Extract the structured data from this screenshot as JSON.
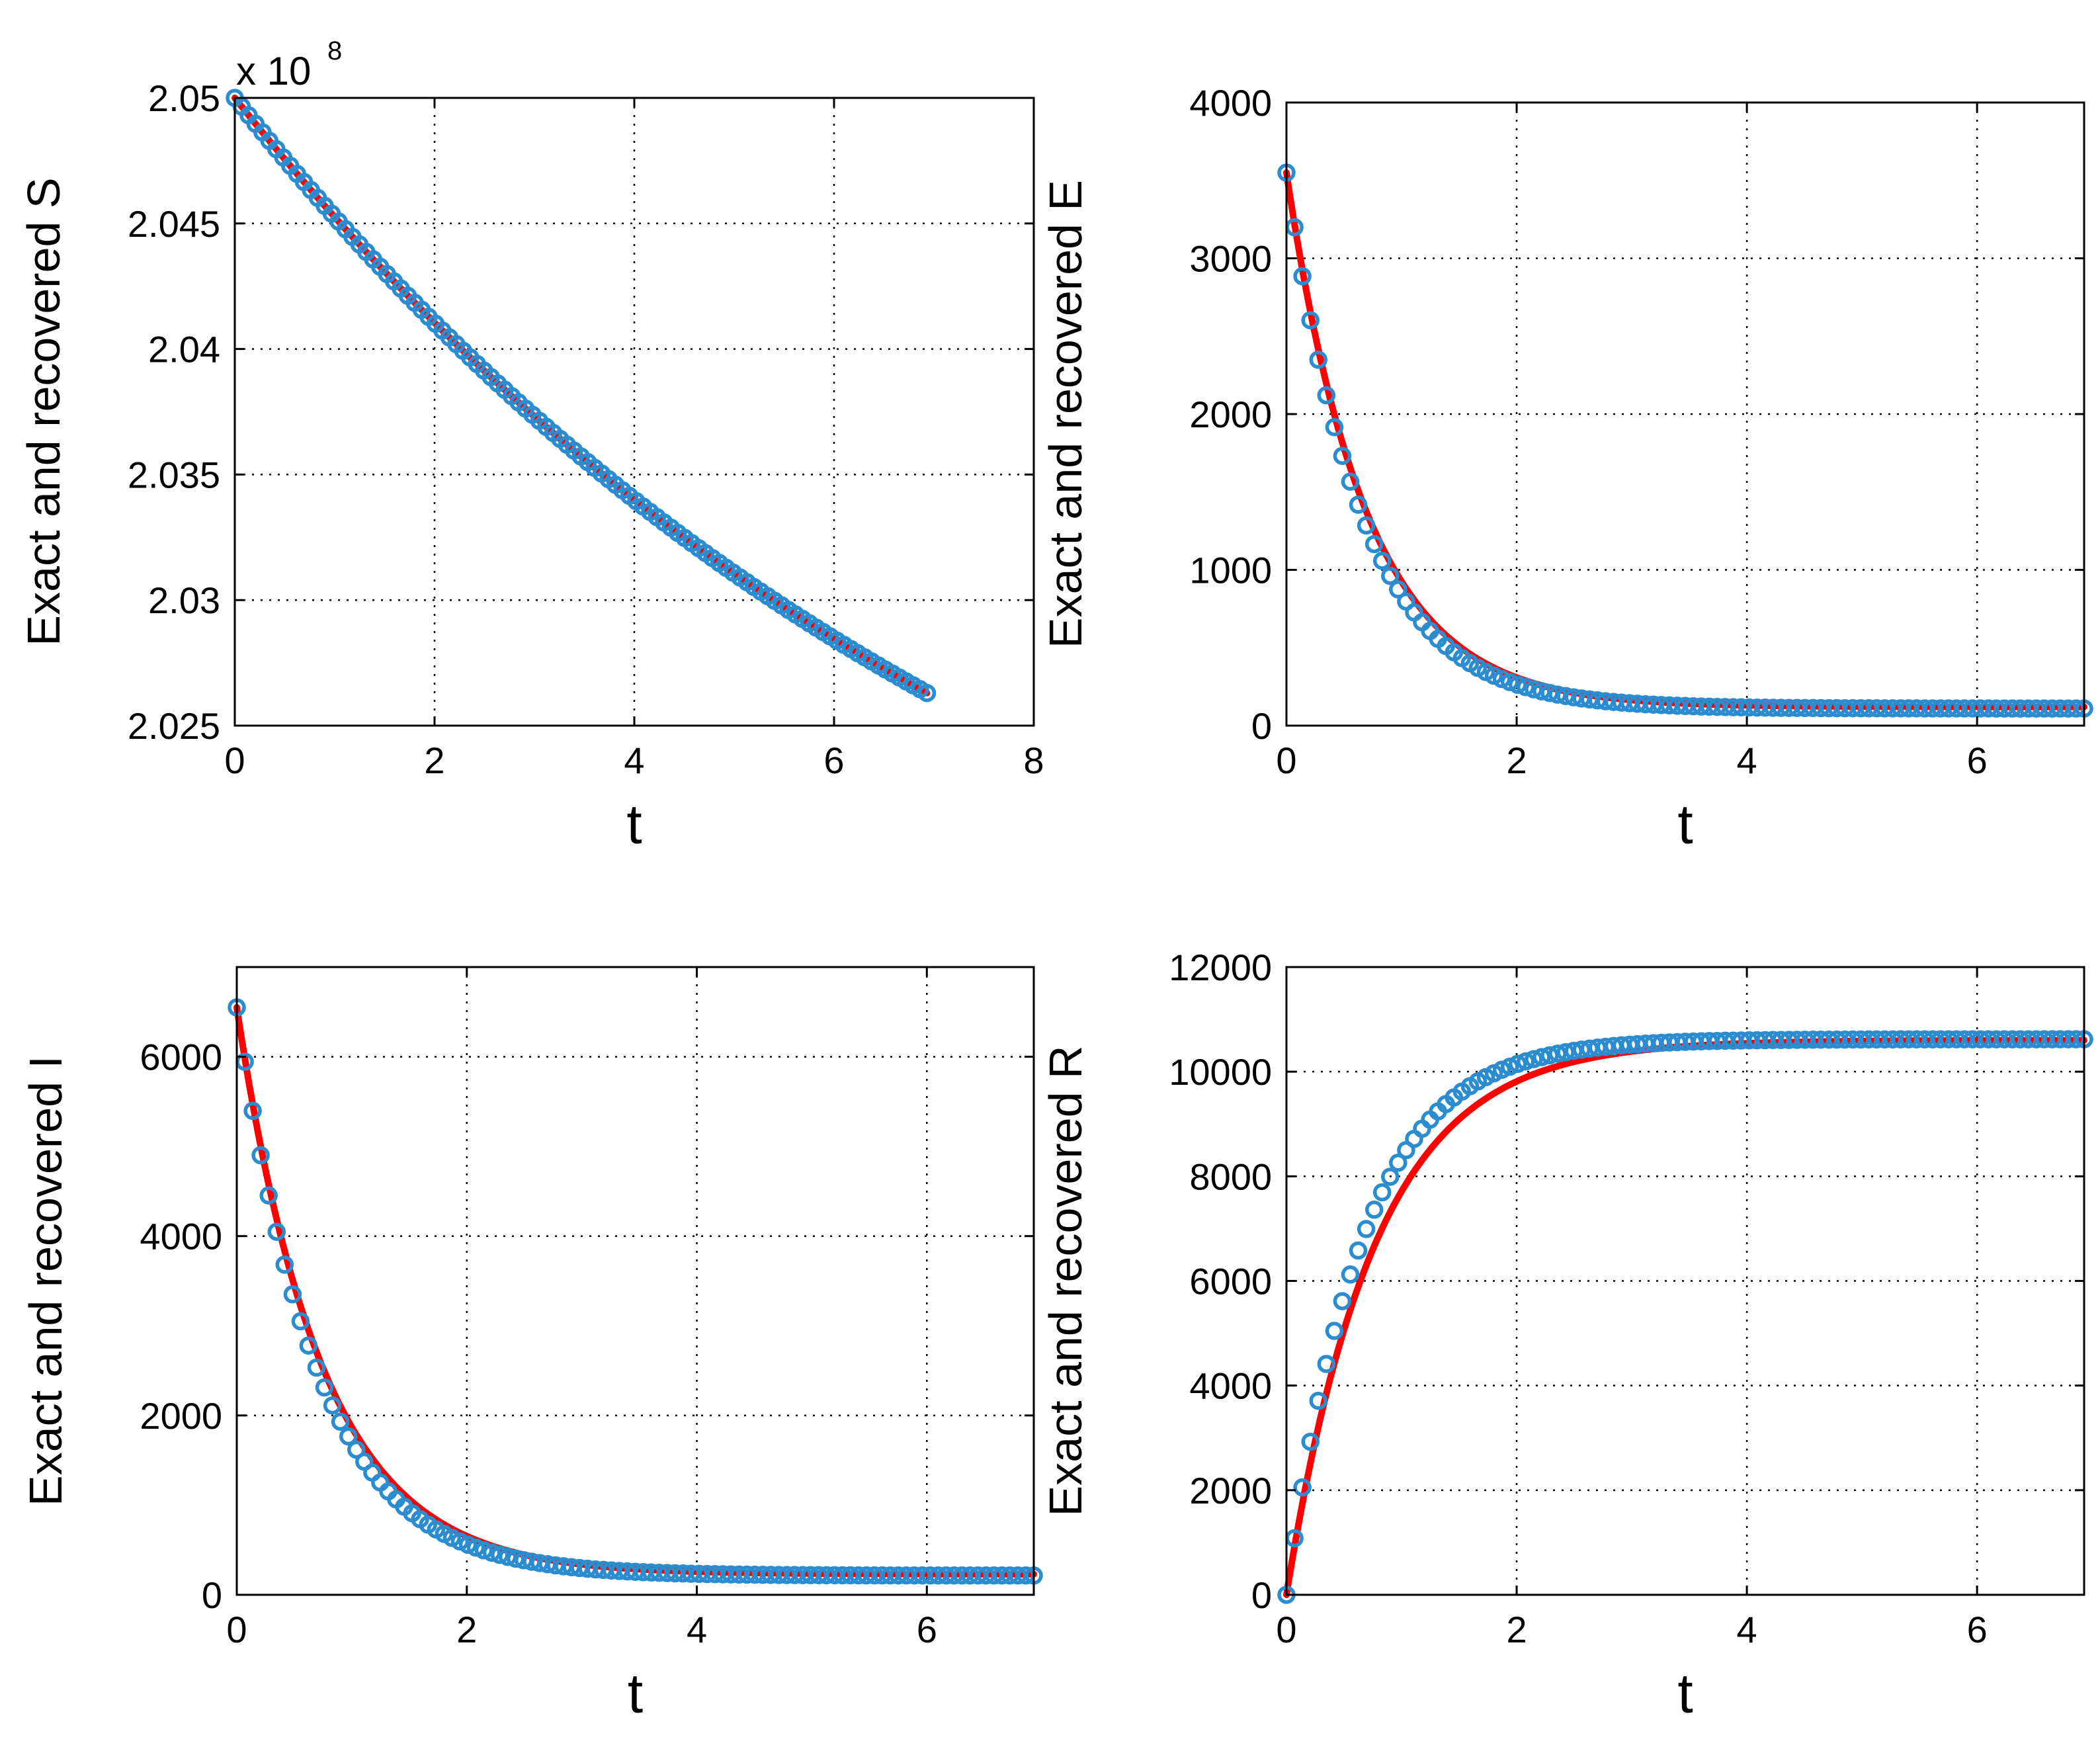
{
  "colors": {
    "exact": "#ff0000",
    "recovered": "#2b8ccf",
    "grid": "#000000",
    "axes": "#000000"
  },
  "chart_data": [
    {
      "id": "S",
      "type": "line",
      "title": "",
      "xlabel": "t",
      "ylabel": "Exact and recovered S",
      "xlim": [
        0,
        8
      ],
      "ylim": [
        2.025,
        2.05
      ],
      "xticks": [
        0,
        2,
        4,
        6,
        8
      ],
      "yticks": [
        2.025,
        2.03,
        2.035,
        2.04,
        2.045,
        2.05
      ],
      "xtick_labels": [
        "0",
        "2",
        "4",
        "6",
        "8"
      ],
      "ytick_labels": [
        "2.025",
        "2.03",
        "2.035",
        "2.04",
        "2.045",
        "2.05"
      ],
      "y_exponent": "x 10",
      "y_exponent_power": "8",
      "grid": true,
      "t_end": 6.93,
      "series": [
        {
          "name": "exact",
          "style": "line",
          "y0": 2.05,
          "y_end": 2.0263,
          "decay_rate": 0.12,
          "k": 0.12
        },
        {
          "name": "recovered",
          "style": "circle-markers",
          "y0": 2.05,
          "y_end": 2.0263,
          "decay_rate": 0.12,
          "k": 0.12
        }
      ]
    },
    {
      "id": "E",
      "type": "line",
      "title": "",
      "xlabel": "t",
      "ylabel": "Exact and recovered E",
      "xlim": [
        0,
        6.93
      ],
      "ylim": [
        0,
        4000
      ],
      "xticks": [
        0,
        2,
        4,
        6
      ],
      "yticks": [
        0,
        1000,
        2000,
        3000,
        4000
      ],
      "xtick_labels": [
        "0",
        "2",
        "4",
        "6"
      ],
      "ytick_labels": [
        "0",
        "1000",
        "2000",
        "3000",
        "4000"
      ],
      "grid": true,
      "t_end": 6.93,
      "series": [
        {
          "name": "exact",
          "style": "line",
          "y0": 3550,
          "y_end": 120,
          "decay_rate": 1.45,
          "k": 0.42
        },
        {
          "name": "recovered",
          "style": "circle-markers",
          "y0": 3550,
          "y_end": 110,
          "decay_rate": 1.55,
          "k": 0.5
        }
      ]
    },
    {
      "id": "I",
      "type": "line",
      "title": "",
      "xlabel": "t",
      "ylabel": "Exact and recovered I",
      "xlim": [
        0,
        6.93
      ],
      "ylim": [
        0,
        7000
      ],
      "xticks": [
        0,
        2,
        4,
        6
      ],
      "yticks": [
        0,
        2000,
        4000,
        6000
      ],
      "xtick_labels": [
        "0",
        "2",
        "4",
        "6"
      ],
      "ytick_labels": [
        "0",
        "2000",
        "4000",
        "6000"
      ],
      "grid": true,
      "t_end": 6.93,
      "series": [
        {
          "name": "exact",
          "style": "line",
          "y0": 6550,
          "y_end": 230,
          "decay_rate": 1.35,
          "k": 0.45
        },
        {
          "name": "recovered",
          "style": "circle-markers",
          "y0": 6550,
          "y_end": 215,
          "decay_rate": 1.45,
          "k": 0.55
        }
      ]
    },
    {
      "id": "R",
      "type": "line",
      "title": "",
      "xlabel": "t",
      "ylabel": "Exact and recovered R",
      "xlim": [
        0,
        6.93
      ],
      "ylim": [
        0,
        12000
      ],
      "xticks": [
        0,
        2,
        4,
        6
      ],
      "yticks": [
        0,
        2000,
        4000,
        6000,
        8000,
        10000,
        12000
      ],
      "xtick_labels": [
        "0",
        "2",
        "4",
        "6"
      ],
      "ytick_labels": [
        "0",
        "2000",
        "4000",
        "6000",
        "8000",
        "10000",
        "12000"
      ],
      "grid": true,
      "t_end": 6.93,
      "series": [
        {
          "name": "exact",
          "style": "line",
          "y0": 0,
          "y_end": 10600,
          "decay_rate": 1.3,
          "k": 0.35
        },
        {
          "name": "recovered",
          "style": "circle-markers",
          "y0": 0,
          "y_end": 10620,
          "decay_rate": 1.55,
          "k": 0.3
        }
      ]
    }
  ]
}
